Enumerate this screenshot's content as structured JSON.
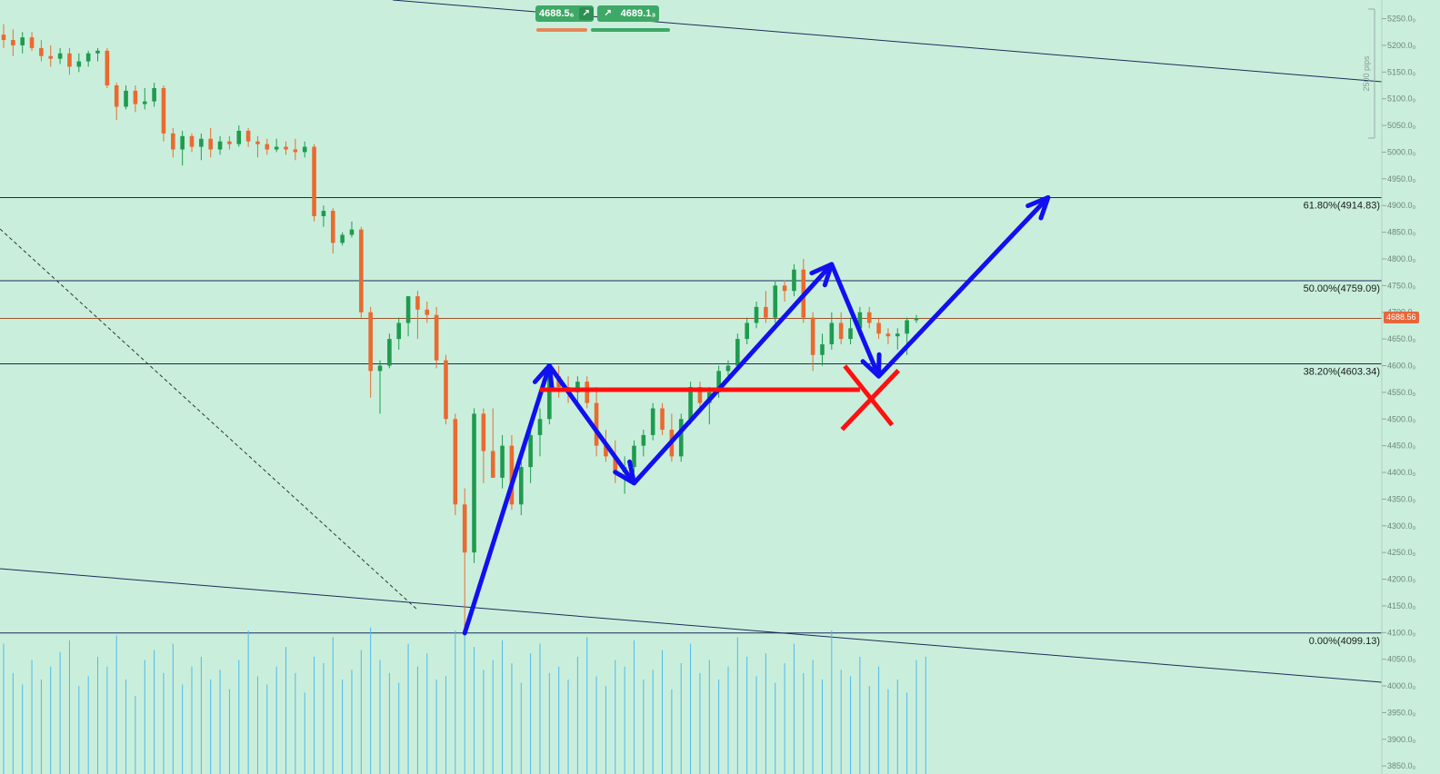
{
  "trade_panel": {
    "sell_price": "4688.5₆",
    "buy_price": "4689.1₃",
    "sell_icon": "arrow-up-right-icon",
    "buy_icon": "arrow-up-right-icon"
  },
  "chart_data": {
    "type": "candlestick",
    "title": "",
    "xlabel": "",
    "ylabel": "",
    "ylim": [
      3835,
      5285
    ],
    "y_ticks": [
      5250,
      5200,
      5150,
      5100,
      5050,
      5000,
      4950,
      4900,
      4850,
      4800,
      4750,
      4700,
      4650,
      4600,
      4550,
      4500,
      4450,
      4400,
      4350,
      4300,
      4250,
      4200,
      4150,
      4100,
      4050,
      4000,
      3950,
      3900,
      3850
    ],
    "y_tick_labels": [
      "5250.0₀",
      "5200.0₀",
      "5150.0₀",
      "5100.0₀",
      "5050.0₀",
      "5000.0₀",
      "4950.0₀",
      "4900.0₀",
      "4850.0₀",
      "4800.0₀",
      "4750.0₀",
      "4700.0₀",
      "4650.0₀",
      "4600.0₀",
      "4550.0₀",
      "4500.0₀",
      "4450.0₀",
      "4400.0₀",
      "4350.0₀",
      "4300.0₀",
      "4250.0₀",
      "4200.0₀",
      "4150.0₀",
      "4100.0₀",
      "4050.0₀",
      "4000.0₀",
      "3950.0₀",
      "3900.0₀",
      "3850.0₀"
    ],
    "current_price": 4688.56,
    "current_price_label": "4688.56",
    "measure_label": "2500 pips",
    "fib_levels": [
      {
        "ratio": "61.80%",
        "price": 4914.83,
        "label": "61.80%(4914.83)"
      },
      {
        "ratio": "50.00%",
        "price": 4759.09,
        "label": "50.00%(4759.09)"
      },
      {
        "ratio": "38.20%",
        "price": 4603.34,
        "label": "38.20%(4603.34)"
      },
      {
        "ratio": "0.00%",
        "price": 4099.13,
        "label": "0.00%(4099.13)"
      }
    ],
    "candles": [
      {
        "o": 5220,
        "h": 5240,
        "l": 5195,
        "c": 5210
      },
      {
        "o": 5210,
        "h": 5230,
        "l": 5180,
        "c": 5200
      },
      {
        "o": 5200,
        "h": 5225,
        "l": 5185,
        "c": 5215
      },
      {
        "o": 5215,
        "h": 5225,
        "l": 5190,
        "c": 5195
      },
      {
        "o": 5195,
        "h": 5210,
        "l": 5170,
        "c": 5180
      },
      {
        "o": 5180,
        "h": 5200,
        "l": 5160,
        "c": 5175
      },
      {
        "o": 5175,
        "h": 5195,
        "l": 5165,
        "c": 5185
      },
      {
        "o": 5185,
        "h": 5195,
        "l": 5145,
        "c": 5160
      },
      {
        "o": 5160,
        "h": 5185,
        "l": 5150,
        "c": 5170
      },
      {
        "o": 5170,
        "h": 5190,
        "l": 5160,
        "c": 5185
      },
      {
        "o": 5185,
        "h": 5195,
        "l": 5170,
        "c": 5190
      },
      {
        "o": 5190,
        "h": 5195,
        "l": 5120,
        "c": 5125
      },
      {
        "o": 5125,
        "h": 5130,
        "l": 5060,
        "c": 5085
      },
      {
        "o": 5085,
        "h": 5125,
        "l": 5080,
        "c": 5115
      },
      {
        "o": 5115,
        "h": 5125,
        "l": 5075,
        "c": 5090
      },
      {
        "o": 5090,
        "h": 5120,
        "l": 5080,
        "c": 5095
      },
      {
        "o": 5095,
        "h": 5130,
        "l": 5085,
        "c": 5120
      },
      {
        "o": 5120,
        "h": 5125,
        "l": 5020,
        "c": 5035
      },
      {
        "o": 5035,
        "h": 5045,
        "l": 4990,
        "c": 5005
      },
      {
        "o": 5005,
        "h": 5040,
        "l": 4975,
        "c": 5030
      },
      {
        "o": 5030,
        "h": 5035,
        "l": 5000,
        "c": 5010
      },
      {
        "o": 5010,
        "h": 5035,
        "l": 4985,
        "c": 5025
      },
      {
        "o": 5025,
        "h": 5045,
        "l": 4990,
        "c": 5005
      },
      {
        "o": 5005,
        "h": 5030,
        "l": 4995,
        "c": 5020
      },
      {
        "o": 5020,
        "h": 5030,
        "l": 5005,
        "c": 5015
      },
      {
        "o": 5015,
        "h": 5050,
        "l": 5010,
        "c": 5040
      },
      {
        "o": 5040,
        "h": 5045,
        "l": 5010,
        "c": 5020
      },
      {
        "o": 5020,
        "h": 5030,
        "l": 4990,
        "c": 5015
      },
      {
        "o": 5015,
        "h": 5025,
        "l": 4995,
        "c": 5005
      },
      {
        "o": 5005,
        "h": 5025,
        "l": 5000,
        "c": 5010
      },
      {
        "o": 5010,
        "h": 5020,
        "l": 4995,
        "c": 5005
      },
      {
        "o": 5005,
        "h": 5025,
        "l": 4985,
        "c": 5000
      },
      {
        "o": 5000,
        "h": 5020,
        "l": 4990,
        "c": 5010
      },
      {
        "o": 5010,
        "h": 5015,
        "l": 4870,
        "c": 4880
      },
      {
        "o": 4880,
        "h": 4900,
        "l": 4860,
        "c": 4890
      },
      {
        "o": 4890,
        "h": 4895,
        "l": 4810,
        "c": 4830
      },
      {
        "o": 4830,
        "h": 4850,
        "l": 4825,
        "c": 4845
      },
      {
        "o": 4845,
        "h": 4870,
        "l": 4840,
        "c": 4855
      },
      {
        "o": 4855,
        "h": 4860,
        "l": 4690,
        "c": 4700
      },
      {
        "o": 4700,
        "h": 4710,
        "l": 4540,
        "c": 4590
      },
      {
        "o": 4590,
        "h": 4610,
        "l": 4510,
        "c": 4600
      },
      {
        "o": 4600,
        "h": 4660,
        "l": 4595,
        "c": 4650
      },
      {
        "o": 4650,
        "h": 4690,
        "l": 4630,
        "c": 4680
      },
      {
        "o": 4680,
        "h": 4730,
        "l": 4655,
        "c": 4730
      },
      {
        "o": 4730,
        "h": 4740,
        "l": 4650,
        "c": 4705
      },
      {
        "o": 4705,
        "h": 4720,
        "l": 4680,
        "c": 4695
      },
      {
        "o": 4695,
        "h": 4710,
        "l": 4595,
        "c": 4610
      },
      {
        "o": 4610,
        "h": 4620,
        "l": 4490,
        "c": 4500
      },
      {
        "o": 4500,
        "h": 4510,
        "l": 4320,
        "c": 4340
      },
      {
        "o": 4340,
        "h": 4370,
        "l": 4099,
        "c": 4250
      },
      {
        "o": 4250,
        "h": 4520,
        "l": 4230,
        "c": 4510
      },
      {
        "o": 4510,
        "h": 4520,
        "l": 4380,
        "c": 4440
      },
      {
        "o": 4440,
        "h": 4520,
        "l": 4390,
        "c": 4390
      },
      {
        "o": 4390,
        "h": 4470,
        "l": 4370,
        "c": 4450
      },
      {
        "o": 4450,
        "h": 4470,
        "l": 4330,
        "c": 4340
      },
      {
        "o": 4340,
        "h": 4420,
        "l": 4320,
        "c": 4410
      },
      {
        "o": 4410,
        "h": 4480,
        "l": 4380,
        "c": 4470
      },
      {
        "o": 4470,
        "h": 4520,
        "l": 4430,
        "c": 4500
      },
      {
        "o": 4500,
        "h": 4590,
        "l": 4490,
        "c": 4580
      },
      {
        "o": 4580,
        "h": 4600,
        "l": 4540,
        "c": 4560
      },
      {
        "o": 4560,
        "h": 4580,
        "l": 4530,
        "c": 4550
      },
      {
        "o": 4550,
        "h": 4580,
        "l": 4520,
        "c": 4570
      },
      {
        "o": 4570,
        "h": 4580,
        "l": 4520,
        "c": 4530
      },
      {
        "o": 4530,
        "h": 4560,
        "l": 4430,
        "c": 4450
      },
      {
        "o": 4450,
        "h": 4480,
        "l": 4420,
        "c": 4430
      },
      {
        "o": 4430,
        "h": 4460,
        "l": 4380,
        "c": 4400
      },
      {
        "o": 4400,
        "h": 4430,
        "l": 4360,
        "c": 4410
      },
      {
        "o": 4410,
        "h": 4460,
        "l": 4400,
        "c": 4450
      },
      {
        "o": 4450,
        "h": 4480,
        "l": 4430,
        "c": 4470
      },
      {
        "o": 4470,
        "h": 4530,
        "l": 4460,
        "c": 4520
      },
      {
        "o": 4520,
        "h": 4530,
        "l": 4470,
        "c": 4480
      },
      {
        "o": 4480,
        "h": 4510,
        "l": 4420,
        "c": 4430
      },
      {
        "o": 4430,
        "h": 4510,
        "l": 4420,
        "c": 4500
      },
      {
        "o": 4500,
        "h": 4570,
        "l": 4490,
        "c": 4560
      },
      {
        "o": 4560,
        "h": 4570,
        "l": 4510,
        "c": 4530
      },
      {
        "o": 4530,
        "h": 4560,
        "l": 4490,
        "c": 4550
      },
      {
        "o": 4550,
        "h": 4600,
        "l": 4540,
        "c": 4590
      },
      {
        "o": 4590,
        "h": 4610,
        "l": 4570,
        "c": 4600
      },
      {
        "o": 4600,
        "h": 4660,
        "l": 4590,
        "c": 4650
      },
      {
        "o": 4650,
        "h": 4690,
        "l": 4640,
        "c": 4680
      },
      {
        "o": 4680,
        "h": 4720,
        "l": 4670,
        "c": 4710
      },
      {
        "o": 4710,
        "h": 4740,
        "l": 4680,
        "c": 4690
      },
      {
        "o": 4690,
        "h": 4760,
        "l": 4680,
        "c": 4750
      },
      {
        "o": 4750,
        "h": 4760,
        "l": 4720,
        "c": 4740
      },
      {
        "o": 4740,
        "h": 4790,
        "l": 4730,
        "c": 4780
      },
      {
        "o": 4780,
        "h": 4800,
        "l": 4680,
        "c": 4690
      },
      {
        "o": 4690,
        "h": 4700,
        "l": 4590,
        "c": 4620
      },
      {
        "o": 4620,
        "h": 4660,
        "l": 4600,
        "c": 4640
      },
      {
        "o": 4640,
        "h": 4700,
        "l": 4630,
        "c": 4680
      },
      {
        "o": 4680,
        "h": 4700,
        "l": 4640,
        "c": 4650
      },
      {
        "o": 4650,
        "h": 4690,
        "l": 4640,
        "c": 4670
      },
      {
        "o": 4670,
        "h": 4710,
        "l": 4660,
        "c": 4700
      },
      {
        "o": 4700,
        "h": 4710,
        "l": 4670,
        "c": 4680
      },
      {
        "o": 4680,
        "h": 4690,
        "l": 4650,
        "c": 4660
      },
      {
        "o": 4660,
        "h": 4670,
        "l": 4640,
        "c": 4655
      },
      {
        "o": 4655,
        "h": 4670,
        "l": 4630,
        "c": 4660
      },
      {
        "o": 4660,
        "h": 4690,
        "l": 4620,
        "c": 4685
      },
      {
        "o": 4685,
        "h": 4695,
        "l": 4680,
        "c": 4689
      }
    ],
    "volume": [
      80,
      62,
      55,
      70,
      58,
      66,
      75,
      82,
      54,
      60,
      72,
      66,
      85,
      58,
      48,
      70,
      76,
      62,
      80,
      55,
      66,
      72,
      58,
      64,
      52,
      70,
      88,
      60,
      55,
      66,
      78,
      62,
      50,
      72,
      68,
      84,
      58,
      64,
      76,
      90,
      70,
      62,
      56,
      80,
      66,
      74,
      58,
      60,
      88,
      92,
      78,
      64,
      70,
      82,
      68,
      56,
      74,
      80,
      62,
      66,
      58,
      72,
      84,
      60,
      54,
      70,
      66,
      82,
      58,
      64,
      76,
      52,
      68,
      80,
      62,
      70,
      58,
      66,
      84,
      72,
      60,
      74,
      56,
      68,
      80,
      62,
      70,
      58,
      88,
      64,
      60,
      72,
      54,
      66,
      52,
      58,
      50,
      70,
      72
    ],
    "annotations": [
      {
        "type": "arrow",
        "color": "#1010f0",
        "label": "",
        "points": [
          [
            4099,
            49
          ],
          [
            4600,
            58
          ],
          [
            4380,
            67
          ],
          [
            4790,
            88
          ],
          [
            4580,
            93
          ],
          [
            4915,
            111
          ]
        ]
      },
      {
        "type": "level",
        "color": "#ff1010",
        "label": "",
        "price": 4555,
        "from": 57,
        "to": 91
      },
      {
        "type": "cross",
        "color": "#ff1010",
        "label": "",
        "price": 4540,
        "at": 92
      }
    ]
  }
}
